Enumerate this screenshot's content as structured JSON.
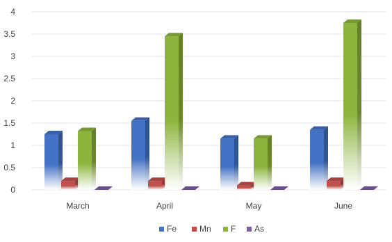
{
  "chart_data": {
    "type": "bar",
    "style": "3d-column-gradient",
    "categories": [
      "March",
      "April",
      "May",
      "June"
    ],
    "series": [
      {
        "name": "Fe",
        "color": "#4472c4",
        "values": [
          1.25,
          1.55,
          1.15,
          1.35
        ]
      },
      {
        "name": "Mn",
        "color": "#c0504d",
        "values": [
          0.2,
          0.2,
          0.1,
          0.2
        ]
      },
      {
        "name": "F",
        "color": "#8db53e",
        "values": [
          1.32,
          3.45,
          1.15,
          3.75
        ]
      },
      {
        "name": "As",
        "color": "#7e5fa6",
        "values": [
          0.0,
          0.0,
          0.0,
          0.0
        ]
      }
    ],
    "ylim": [
      0,
      4
    ],
    "y_ticks": [
      "0",
      "0.5",
      "1",
      "1.5",
      "2",
      "2.5",
      "3",
      "3.5",
      "4"
    ],
    "grid": true,
    "legend_position": "bottom"
  }
}
